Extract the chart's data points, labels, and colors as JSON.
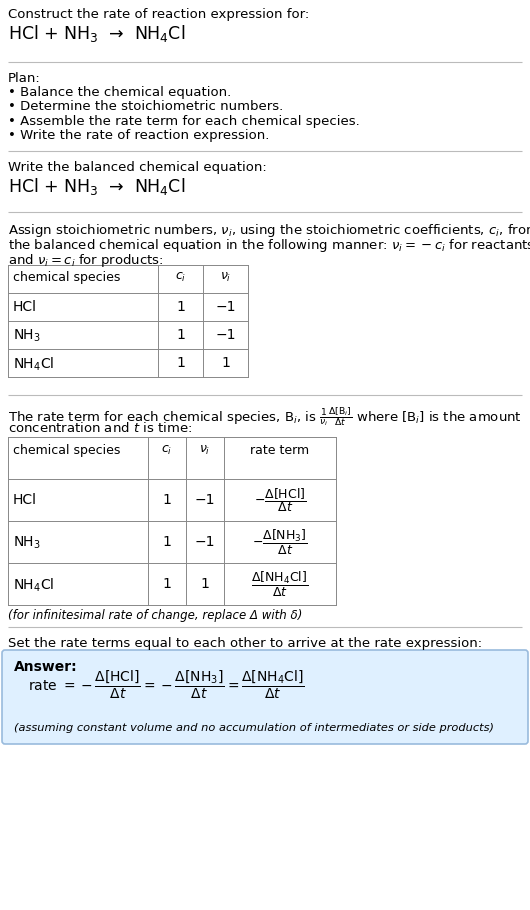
{
  "title_line1": "Construct the rate of reaction expression for:",
  "title_line2": "HCl + NH$_3$  →  NH$_4$Cl",
  "plan_header": "Plan:",
  "plan_bullets": [
    "• Balance the chemical equation.",
    "• Determine the stoichiometric numbers.",
    "• Assemble the rate term for each chemical species.",
    "• Write the rate of reaction expression."
  ],
  "balanced_eq_header": "Write the balanced chemical equation:",
  "balanced_eq": "HCl + NH$_3$  →  NH$_4$Cl",
  "stoich_intro1": "Assign stoichiometric numbers, $\\nu_i$, using the stoichiometric coefficients, $c_i$, from",
  "stoich_intro2": "the balanced chemical equation in the following manner: $\\nu_i = -c_i$ for reactants",
  "stoich_intro3": "and $\\nu_i = c_i$ for products:",
  "table1_headers": [
    "chemical species",
    "$c_i$",
    "$\\nu_i$"
  ],
  "table1_rows": [
    [
      "HCl",
      "1",
      "−1"
    ],
    [
      "NH$_3$",
      "1",
      "−1"
    ],
    [
      "NH$_4$Cl",
      "1",
      "1"
    ]
  ],
  "rate_intro1": "The rate term for each chemical species, B$_i$, is $\\frac{1}{\\nu_i}\\frac{\\Delta[\\mathrm{B}_i]}{\\Delta t}$ where [B$_i$] is the amount",
  "rate_intro2": "concentration and $t$ is time:",
  "table2_headers": [
    "chemical species",
    "$c_i$",
    "$\\nu_i$",
    "rate term"
  ],
  "table2_rows": [
    [
      "HCl",
      "1",
      "−1",
      "$-\\frac{\\Delta[\\mathrm{HCl}]}{\\Delta t}$"
    ],
    [
      "NH$_3$",
      "1",
      "−1",
      "$-\\frac{\\Delta[\\mathrm{NH_3}]}{\\Delta t}$"
    ],
    [
      "NH$_4$Cl",
      "1",
      "1",
      "$\\frac{\\Delta[\\mathrm{NH_4Cl}]}{\\Delta t}$"
    ]
  ],
  "infinitesimal_note": "(for infinitesimal rate of change, replace Δ with δ)",
  "set_equal_text": "Set the rate terms equal to each other to arrive at the rate expression:",
  "answer_label": "Answer:",
  "answer_note": "(assuming constant volume and no accumulation of intermediates or side products)",
  "bg_color": "#ffffff",
  "answer_box_color": "#dff0ff",
  "table_line_color": "#888888",
  "text_color": "#000000",
  "sep_line_color": "#bbbbbb"
}
